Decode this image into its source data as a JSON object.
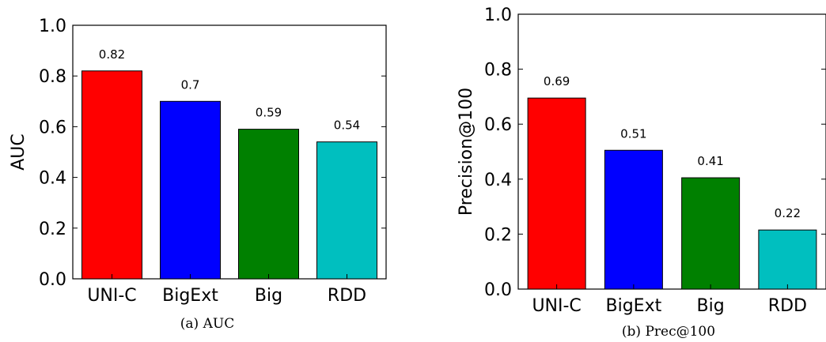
{
  "colors": {
    "UNI-C": "#ff0000",
    "BigExt": "#0000ff",
    "Big": "#008000",
    "RDD": "#00bfbf"
  },
  "chart_data": [
    {
      "type": "bar",
      "categories": [
        "UNI-C",
        "BigExt",
        "Big",
        "RDD"
      ],
      "values": [
        0.82,
        0.7,
        0.59,
        0.54
      ],
      "data_labels": [
        "0.82",
        "0.7",
        "0.59",
        "0.54"
      ],
      "title": "",
      "xlabel": "",
      "ylabel": "AUC",
      "ylim": [
        0,
        1.0
      ],
      "yticks": [
        "0.0",
        "0.2",
        "0.4",
        "0.6",
        "0.8",
        "1.0"
      ],
      "caption": "(a) AUC",
      "grid": false
    },
    {
      "type": "bar",
      "categories": [
        "UNI-C",
        "BigExt",
        "Big",
        "RDD"
      ],
      "values": [
        0.695,
        0.505,
        0.405,
        0.215
      ],
      "data_labels": [
        "0.69",
        "0.51",
        "0.41",
        "0.22"
      ],
      "title": "",
      "xlabel": "",
      "ylabel": "Precision@100",
      "ylim": [
        0,
        1.0
      ],
      "yticks": [
        "0.0",
        "0.2",
        "0.4",
        "0.6",
        "0.8",
        "1.0"
      ],
      "caption": "(b) Prec@100",
      "grid": false
    }
  ]
}
